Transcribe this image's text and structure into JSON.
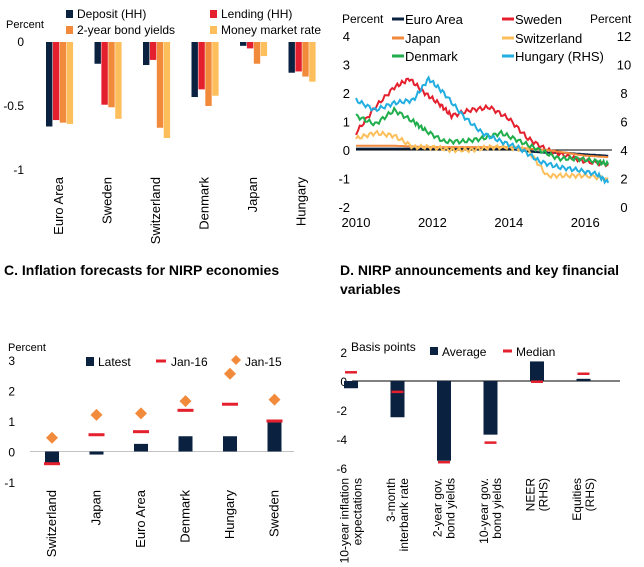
{
  "panels": {
    "c_title": "C. Inflation forecasts for NIRP economies",
    "d_title": "D. NIRP announcements and key financial variables"
  },
  "chart_data": [
    {
      "id": "A",
      "type": "bar",
      "ylabel": "Percent",
      "ylim": [
        -1,
        0
      ],
      "yticks": [
        0,
        -0.5,
        -1
      ],
      "ytick_labels": [
        "0",
        "-0.5",
        "-1"
      ],
      "categories": [
        "Euro Area",
        "Sweden",
        "Switzerland",
        "Denmark",
        "Japan",
        "Hungary"
      ],
      "series": [
        {
          "name": "Deposit (HH)",
          "color": "#0b2140",
          "values": [
            -0.66,
            -0.17,
            -0.18,
            -0.43,
            -0.03,
            -0.24
          ]
        },
        {
          "name": "Lending (HH)",
          "color": "#e4202e",
          "values": [
            -0.61,
            -0.49,
            -0.14,
            -0.37,
            -0.05,
            -0.23
          ]
        },
        {
          "name": "2-year bond yields",
          "color": "#f28a3c",
          "values": [
            -0.63,
            -0.51,
            -0.67,
            -0.5,
            -0.17,
            -0.27
          ]
        },
        {
          "name": "Money market rate",
          "color": "#fdbf5b",
          "values": [
            -0.64,
            -0.6,
            -0.75,
            -0.42,
            -0.11,
            -0.31
          ]
        }
      ],
      "legend": "top"
    },
    {
      "id": "B",
      "type": "line",
      "ylabel": "Percent",
      "y2label": "Percent",
      "ylim": [
        -2,
        4
      ],
      "y2lim": [
        0,
        12
      ],
      "yticks": [
        4,
        3,
        2,
        1,
        0,
        -1,
        -2
      ],
      "y2ticks": [
        12,
        10,
        8,
        6,
        4,
        2,
        0
      ],
      "xlim": [
        2010,
        2016.7
      ],
      "xticks": [
        "2010",
        "2012",
        "2014",
        "2016"
      ],
      "series": [
        {
          "name": "Euro Area",
          "color": "#0b2140",
          "axis": "left",
          "x": [
            2010,
            2011,
            2012,
            2013,
            2014,
            2014.5,
            2015,
            2015.5,
            2016,
            2016.6
          ],
          "y": [
            0.05,
            0.05,
            0.05,
            0.05,
            0.05,
            -0.05,
            -0.1,
            -0.1,
            -0.15,
            -0.2
          ]
        },
        {
          "name": "Sweden",
          "color": "#e4202e",
          "axis": "left",
          "x": [
            2010,
            2010.5,
            2011,
            2011.4,
            2011.8,
            2012.2,
            2012.5,
            2013,
            2013.5,
            2014,
            2014.5,
            2015,
            2015.5,
            2016,
            2016.6
          ],
          "y": [
            0.6,
            1.5,
            2.2,
            2.5,
            2.0,
            1.6,
            1.2,
            1.4,
            1.5,
            1.1,
            0.4,
            0.0,
            -0.2,
            -0.4,
            -0.5
          ]
        },
        {
          "name": "Japan",
          "color": "#f28a3c",
          "axis": "left",
          "x": [
            2010,
            2011,
            2012,
            2013,
            2014,
            2015,
            2016,
            2016.6
          ],
          "y": [
            0.15,
            0.15,
            0.1,
            0.1,
            0.1,
            0.0,
            -0.2,
            -0.25
          ]
        },
        {
          "name": "Switzerland",
          "color": "#fdbf5b",
          "axis": "left",
          "x": [
            2010,
            2010.5,
            2011,
            2011.5,
            2012,
            2012.5,
            2013,
            2013.5,
            2014,
            2014.5,
            2015,
            2015.5,
            2016,
            2016.6
          ],
          "y": [
            0.4,
            0.6,
            0.5,
            0.1,
            0.1,
            0.0,
            0.0,
            0.1,
            0.1,
            0.0,
            -0.9,
            -0.9,
            -0.9,
            -1.0
          ]
        },
        {
          "name": "Denmark",
          "color": "#1fae4b",
          "axis": "left",
          "x": [
            2010,
            2010.5,
            2011,
            2011.5,
            2011.8,
            2012.3,
            2012.8,
            2013.3,
            2013.8,
            2014.3,
            2014.8,
            2015.3,
            2015.8,
            2016.3,
            2016.6
          ],
          "y": [
            1.2,
            0.9,
            1.4,
            1.0,
            0.7,
            0.3,
            0.3,
            0.4,
            0.6,
            0.3,
            0.0,
            -0.3,
            -0.3,
            -0.4,
            -0.5
          ]
        },
        {
          "name": "Hungary (RHS)",
          "color": "#22aee0",
          "axis": "right",
          "x": [
            2010,
            2010.5,
            2011,
            2011.5,
            2011.9,
            2012.3,
            2012.8,
            2013.3,
            2013.8,
            2014.3,
            2014.8,
            2015.3,
            2015.8,
            2016.3,
            2016.6
          ],
          "y": [
            7.5,
            6.8,
            7.3,
            7.5,
            9.0,
            8.0,
            6.4,
            5.2,
            4.6,
            4.1,
            3.2,
            2.8,
            2.6,
            2.3,
            1.7
          ]
        }
      ],
      "legend": "top"
    },
    {
      "id": "C",
      "type": "bar",
      "ylabel": "Percent",
      "ylim": [
        -1,
        3
      ],
      "yticks": [
        3,
        2,
        1,
        0,
        -1
      ],
      "ytick_labels": [
        "3",
        "2",
        "1",
        "0",
        "-1"
      ],
      "categories": [
        "Switzerland",
        "Japan",
        "Euro Area",
        "Denmark",
        "Hungary",
        "Sweden"
      ],
      "series": [
        {
          "name": "Latest",
          "color": "#0b2140",
          "values": [
            -0.4,
            -0.1,
            0.25,
            0.5,
            0.5,
            0.95
          ]
        },
        {
          "name": "Jan-16",
          "color": "#e4202e",
          "values": [
            -0.4,
            0.55,
            0.65,
            1.35,
            1.55,
            1.0
          ]
        },
        {
          "name": "Jan-15",
          "color": "#f28a3c",
          "values": [
            0.45,
            1.2,
            1.25,
            1.65,
            2.55,
            1.7
          ]
        }
      ],
      "legend": "top"
    },
    {
      "id": "D",
      "type": "bar",
      "ylabel": "Basis points",
      "ylim": [
        -6,
        2
      ],
      "yticks": [
        2,
        0,
        -2,
        -4,
        -6
      ],
      "ytick_labels": [
        "2",
        "0",
        "-2",
        "-4",
        "-6"
      ],
      "categories": [
        "10-year inflation expectations",
        "3-month interbank rate",
        "2-year gov. bond yields",
        "10-year gov. bond yields",
        "NEER (RHS)",
        "Equities (RHS)"
      ],
      "category_lines": [
        [
          "10-year inflation",
          "expectations"
        ],
        [
          "3-month",
          "interbank rate"
        ],
        [
          "2-year gov.",
          "bond yields"
        ],
        [
          "10-year gov.",
          "bond yields"
        ],
        [
          "NEER",
          "(RHS)"
        ],
        [
          "Equities",
          "(RHS)"
        ]
      ],
      "series": [
        {
          "name": "Average",
          "color": "#0b2140",
          "values": [
            -0.5,
            -2.5,
            -5.5,
            -3.7,
            1.35,
            0.15
          ]
        },
        {
          "name": "Median",
          "color": "#e4202e",
          "values": [
            0.6,
            -0.75,
            -5.6,
            -4.25,
            -0.05,
            0.5
          ]
        }
      ],
      "legend": "top"
    }
  ]
}
